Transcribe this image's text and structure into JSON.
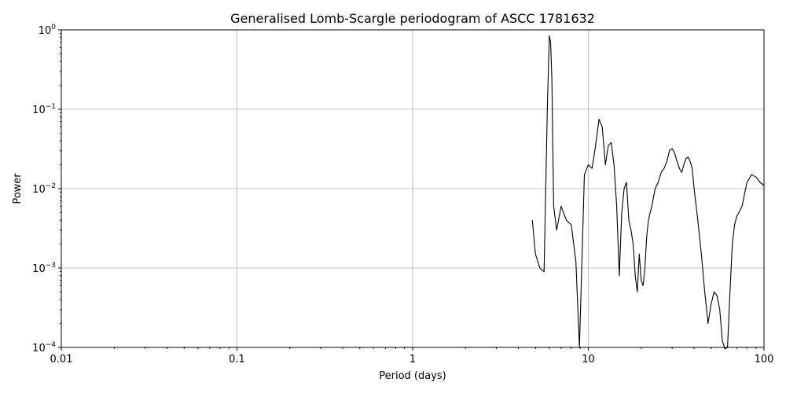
{
  "chart_data": {
    "type": "line",
    "title": "Generalised Lomb-Scargle periodogram of ASCC 1781632",
    "xlabel": "Period (days)",
    "ylabel": "Power",
    "xscale": "log",
    "yscale": "log",
    "xlim": [
      0.01,
      100
    ],
    "ylim": [
      0.0001,
      1
    ],
    "grid": true,
    "x_ticks": [
      {
        "value": 0.01,
        "label": "0.01"
      },
      {
        "value": 0.1,
        "label": "0.1"
      },
      {
        "value": 1,
        "label": "1"
      },
      {
        "value": 10,
        "label": "10"
      },
      {
        "value": 100,
        "label": "100"
      }
    ],
    "y_ticks": [
      {
        "value": 0.0001,
        "base": "10",
        "exp": "−4"
      },
      {
        "value": 0.001,
        "base": "10",
        "exp": "−3"
      },
      {
        "value": 0.01,
        "base": "10",
        "exp": "−2"
      },
      {
        "value": 0.1,
        "base": "10",
        "exp": "−1"
      },
      {
        "value": 1,
        "base": "10",
        "exp": "0"
      }
    ],
    "line_color": "#000000",
    "series": [
      {
        "x": [
          4.8,
          5.0,
          5.3,
          5.6,
          5.85,
          6.0,
          6.1,
          6.2,
          6.35,
          6.6,
          7.0,
          7.5,
          8.0,
          8.5,
          8.9,
          9.5,
          10.0,
          10.5,
          11.0,
          11.5,
          12.0,
          12.5,
          13.0,
          13.5,
          14.0,
          14.5,
          15.0,
          15.5,
          16.0,
          16.5,
          17.0,
          17.5,
          18.0,
          18.5,
          19.0,
          19.5,
          20.0,
          20.5,
          21.0,
          21.5,
          22.0,
          22.5,
          23.0,
          24.0,
          25.0,
          26.0,
          27.0,
          28.0,
          29.0,
          30.0,
          31.0,
          32.0,
          33.0,
          34.0,
          35.0,
          36.0,
          37.0,
          38.0,
          39.0,
          40.0,
          42.0,
          44.0,
          46.0,
          48.0,
          50.0,
          52.0,
          54.0,
          56.0,
          58.0,
          60.0,
          62.0,
          64.0,
          66.0,
          68.0,
          70.0,
          72.0,
          75.0,
          80.0,
          85.0,
          90.0,
          95.0,
          100.0
        ],
        "y": [
          0.004,
          0.0015,
          0.001,
          0.0009,
          0.12,
          0.84,
          0.7,
          0.25,
          0.006,
          0.003,
          0.006,
          0.004,
          0.0035,
          0.0012,
          0.0001,
          0.015,
          0.02,
          0.018,
          0.035,
          0.075,
          0.06,
          0.02,
          0.035,
          0.038,
          0.02,
          0.006,
          0.0008,
          0.005,
          0.01,
          0.012,
          0.004,
          0.003,
          0.002,
          0.0008,
          0.0005,
          0.0015,
          0.0007,
          0.0006,
          0.001,
          0.0025,
          0.004,
          0.005,
          0.006,
          0.01,
          0.012,
          0.016,
          0.018,
          0.022,
          0.03,
          0.032,
          0.028,
          0.022,
          0.018,
          0.016,
          0.02,
          0.024,
          0.025,
          0.022,
          0.018,
          0.01,
          0.004,
          0.0015,
          0.0005,
          0.0002,
          0.00035,
          0.0005,
          0.00045,
          0.0003,
          0.00012,
          5e-05,
          0.0001,
          0.0005,
          0.002,
          0.0035,
          0.0045,
          0.005,
          0.006,
          0.012,
          0.015,
          0.014,
          0.012,
          0.011
        ]
      }
    ]
  }
}
